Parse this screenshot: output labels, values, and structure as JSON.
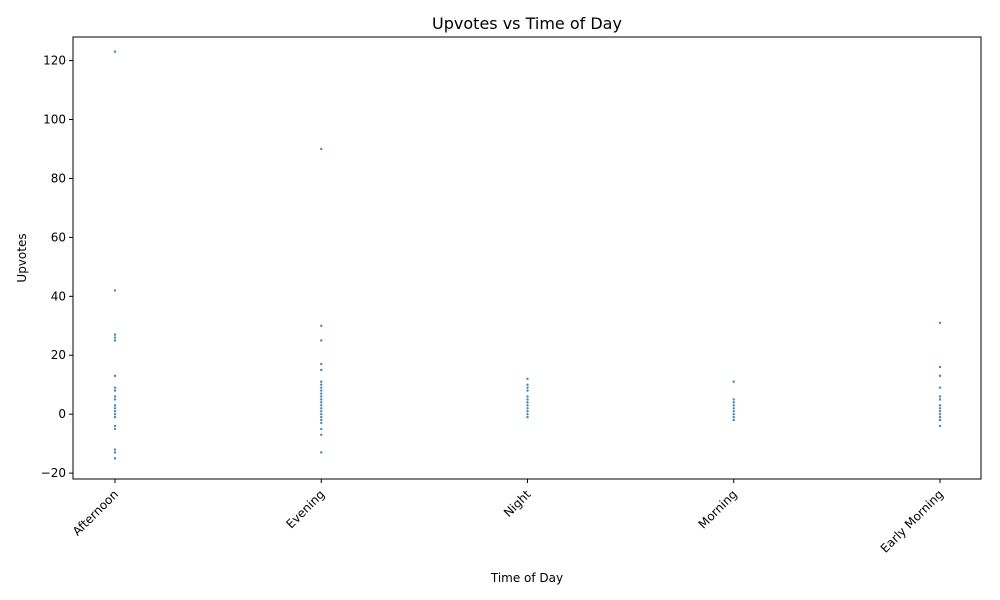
{
  "chart_data": {
    "type": "scatter",
    "title": "Upvotes vs Time of Day",
    "xlabel": "Time of Day",
    "ylabel": "Upvotes",
    "categories": [
      "Afternoon",
      "Evening",
      "Night",
      "Morning",
      "Early Morning"
    ],
    "ylim": [
      -22,
      128
    ],
    "yticks": [
      -20,
      0,
      20,
      40,
      60,
      80,
      100,
      120
    ],
    "grid": false,
    "point_color": "#1f77b4",
    "series": [
      {
        "points": [
          {
            "x": "Afternoon",
            "y": 123
          },
          {
            "x": "Afternoon",
            "y": 42
          },
          {
            "x": "Afternoon",
            "y": 27
          },
          {
            "x": "Afternoon",
            "y": 26
          },
          {
            "x": "Afternoon",
            "y": 25
          },
          {
            "x": "Afternoon",
            "y": 13
          },
          {
            "x": "Afternoon",
            "y": 9
          },
          {
            "x": "Afternoon",
            "y": 8
          },
          {
            "x": "Afternoon",
            "y": 6
          },
          {
            "x": "Afternoon",
            "y": 5
          },
          {
            "x": "Afternoon",
            "y": 3
          },
          {
            "x": "Afternoon",
            "y": 2
          },
          {
            "x": "Afternoon",
            "y": 1
          },
          {
            "x": "Afternoon",
            "y": 0
          },
          {
            "x": "Afternoon",
            "y": -1
          },
          {
            "x": "Afternoon",
            "y": -4
          },
          {
            "x": "Afternoon",
            "y": -5
          },
          {
            "x": "Afternoon",
            "y": -12
          },
          {
            "x": "Afternoon",
            "y": -13
          },
          {
            "x": "Afternoon",
            "y": -15
          },
          {
            "x": "Evening",
            "y": 90
          },
          {
            "x": "Evening",
            "y": 30
          },
          {
            "x": "Evening",
            "y": 25
          },
          {
            "x": "Evening",
            "y": 17
          },
          {
            "x": "Evening",
            "y": 15
          },
          {
            "x": "Evening",
            "y": 11
          },
          {
            "x": "Evening",
            "y": 10
          },
          {
            "x": "Evening",
            "y": 9
          },
          {
            "x": "Evening",
            "y": 8
          },
          {
            "x": "Evening",
            "y": 7
          },
          {
            "x": "Evening",
            "y": 6
          },
          {
            "x": "Evening",
            "y": 5
          },
          {
            "x": "Evening",
            "y": 4
          },
          {
            "x": "Evening",
            "y": 3
          },
          {
            "x": "Evening",
            "y": 2
          },
          {
            "x": "Evening",
            "y": 1
          },
          {
            "x": "Evening",
            "y": 0
          },
          {
            "x": "Evening",
            "y": -1
          },
          {
            "x": "Evening",
            "y": -2
          },
          {
            "x": "Evening",
            "y": -3
          },
          {
            "x": "Evening",
            "y": -5
          },
          {
            "x": "Evening",
            "y": -7
          },
          {
            "x": "Evening",
            "y": -13
          },
          {
            "x": "Night",
            "y": 12
          },
          {
            "x": "Night",
            "y": 10
          },
          {
            "x": "Night",
            "y": 9
          },
          {
            "x": "Night",
            "y": 8
          },
          {
            "x": "Night",
            "y": 6
          },
          {
            "x": "Night",
            "y": 5
          },
          {
            "x": "Night",
            "y": 4
          },
          {
            "x": "Night",
            "y": 3
          },
          {
            "x": "Night",
            "y": 2
          },
          {
            "x": "Night",
            "y": 1
          },
          {
            "x": "Night",
            "y": 0
          },
          {
            "x": "Night",
            "y": -1
          },
          {
            "x": "Morning",
            "y": 11
          },
          {
            "x": "Morning",
            "y": 5
          },
          {
            "x": "Morning",
            "y": 4
          },
          {
            "x": "Morning",
            "y": 3
          },
          {
            "x": "Morning",
            "y": 2
          },
          {
            "x": "Morning",
            "y": 1
          },
          {
            "x": "Morning",
            "y": 0
          },
          {
            "x": "Morning",
            "y": -1
          },
          {
            "x": "Morning",
            "y": -2
          },
          {
            "x": "Early Morning",
            "y": 31
          },
          {
            "x": "Early Morning",
            "y": 16
          },
          {
            "x": "Early Morning",
            "y": 13
          },
          {
            "x": "Early Morning",
            "y": 9
          },
          {
            "x": "Early Morning",
            "y": 6
          },
          {
            "x": "Early Morning",
            "y": 5
          },
          {
            "x": "Early Morning",
            "y": 3
          },
          {
            "x": "Early Morning",
            "y": 2
          },
          {
            "x": "Early Morning",
            "y": 1
          },
          {
            "x": "Early Morning",
            "y": 0
          },
          {
            "x": "Early Morning",
            "y": -1
          },
          {
            "x": "Early Morning",
            "y": -2
          },
          {
            "x": "Early Morning",
            "y": -4
          }
        ]
      }
    ]
  }
}
